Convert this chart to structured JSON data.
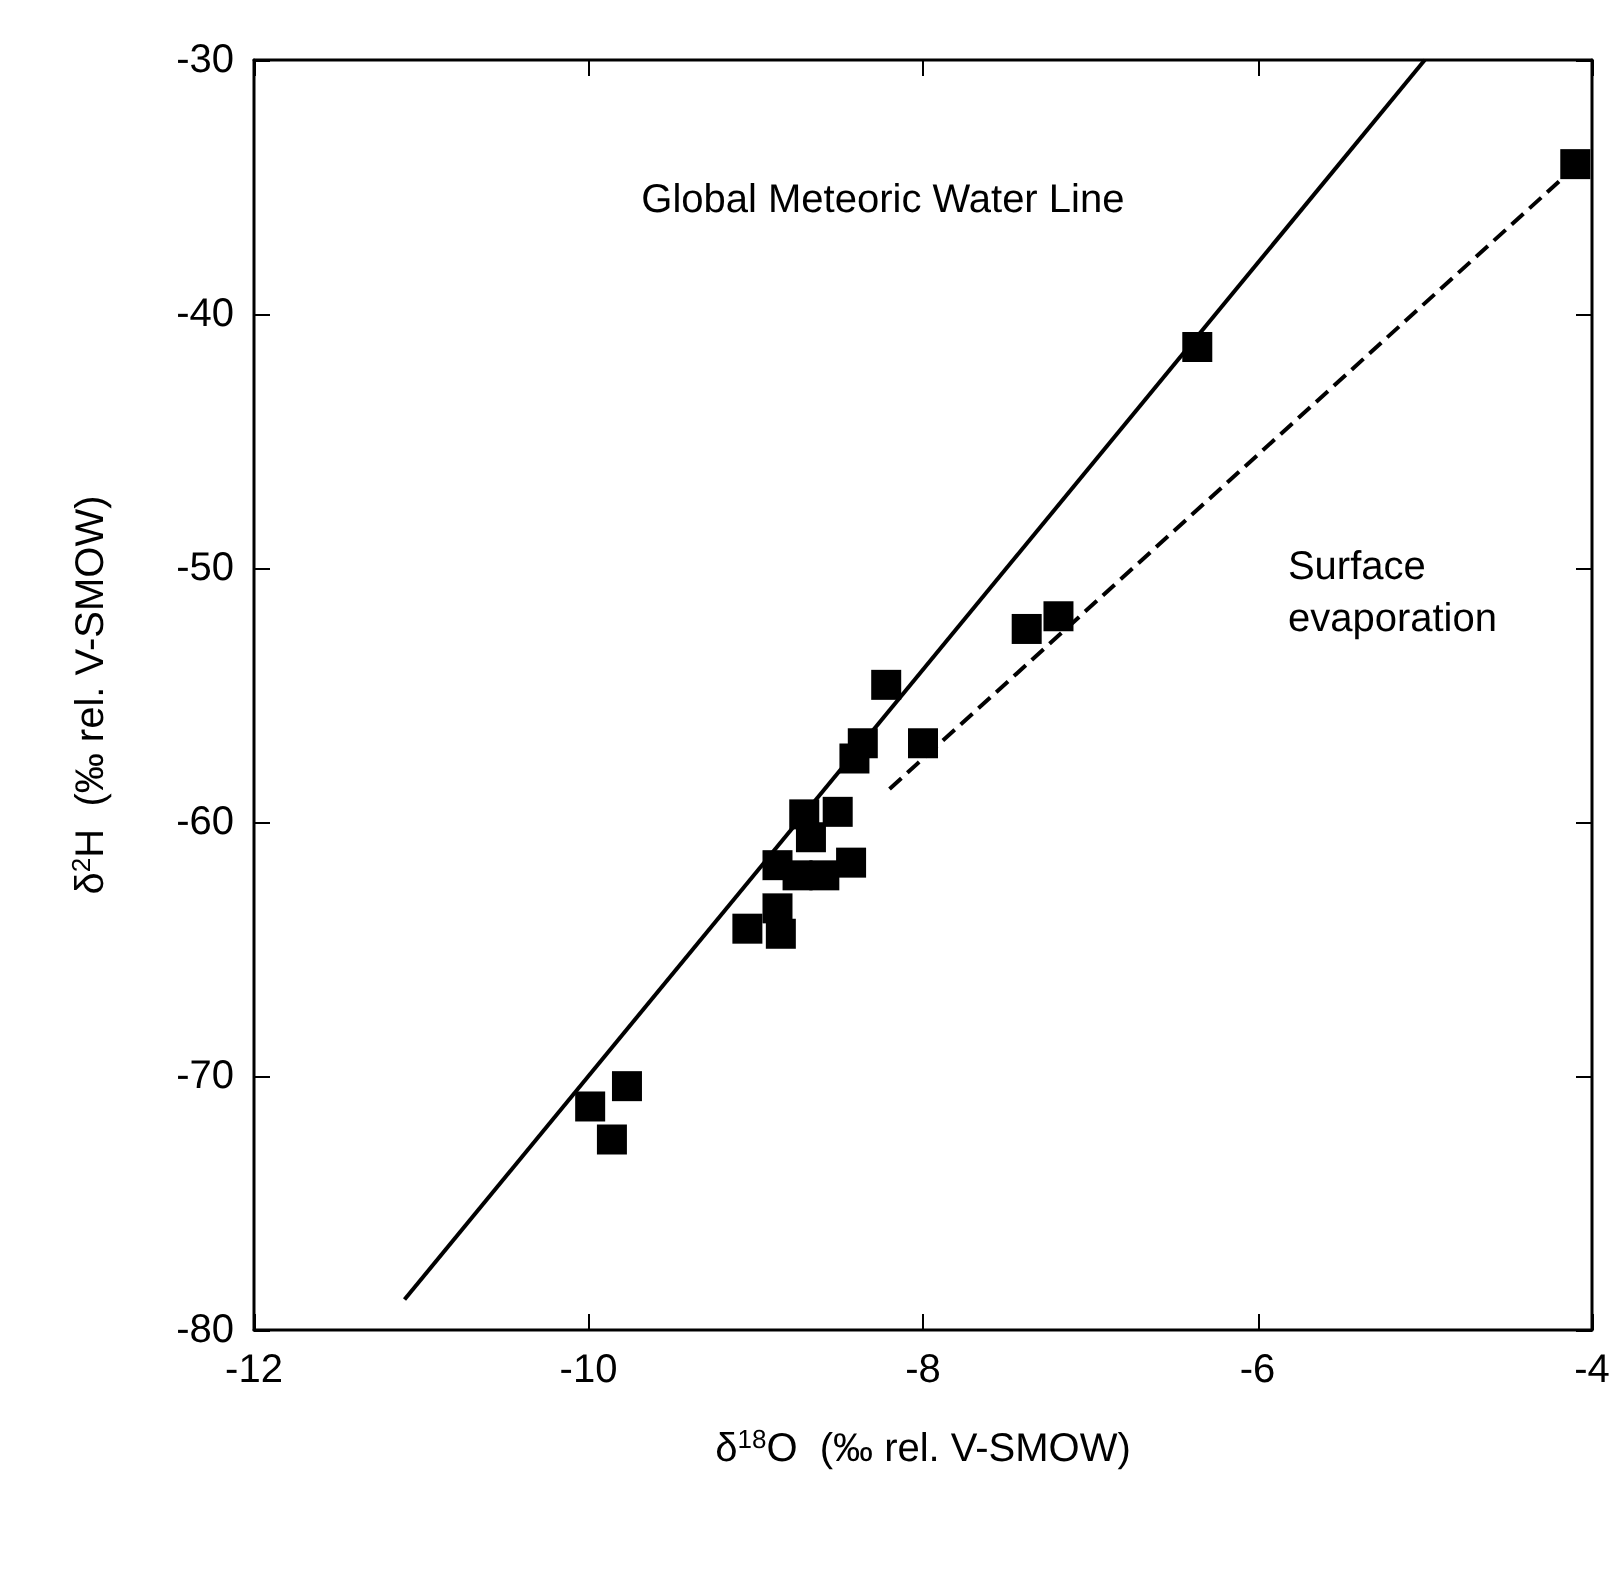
{
  "chart_data": {
    "type": "scatter",
    "xlabel": "δ$^{18}$O  (‰ rel. V-SMOW)",
    "ylabel": "δ$^{2}$H  (‰ rel. V-SMOW)",
    "xlim": [
      -12,
      -4
    ],
    "xticks": [
      -12,
      -10,
      -8,
      -6,
      -4
    ],
    "ylim": [
      -80,
      -30
    ],
    "yticks": [
      -80,
      -70,
      -60,
      -50,
      -40,
      -30
    ],
    "grid": false,
    "marker": "square",
    "series": [
      {
        "color": "#000000",
        "x": [
          -4.1,
          -6.36,
          -7.38,
          -7.19,
          -8.22,
          -8.0,
          -8.36,
          -8.41,
          -8.71,
          -8.51,
          -8.67,
          -8.87,
          -8.61,
          -8.43,
          -8.59,
          -8.75,
          -8.87,
          -9.05,
          -8.85,
          -9.77,
          -9.99,
          -9.86
        ],
        "values": [
          -34.1,
          -41.3,
          -52.4,
          -51.9,
          -54.6,
          -56.9,
          -56.9,
          -57.5,
          -59.7,
          -59.6,
          -60.6,
          -61.7,
          null,
          -61.6,
          -62.1,
          -62.1,
          -63.4,
          -64.2,
          -64.4,
          -70.4,
          -71.2,
          -72.5
        ]
      },
      {
        "type": "line",
        "color": "#000000",
        "line_style": "solid",
        "marker": "none",
        "x": [
          -11.1,
          -5.0
        ],
        "values": [
          -78.8,
          -30
        ]
      },
      {
        "type": "line",
        "color": "#000000",
        "line_style": "dashed",
        "marker": "none",
        "x": [
          -8.2,
          -4.15
        ],
        "values": [
          -58.7,
          -34.5
        ]
      }
    ],
    "annotations": [
      "Global Meteoric Water Line",
      "Surface evaporation"
    ]
  }
}
